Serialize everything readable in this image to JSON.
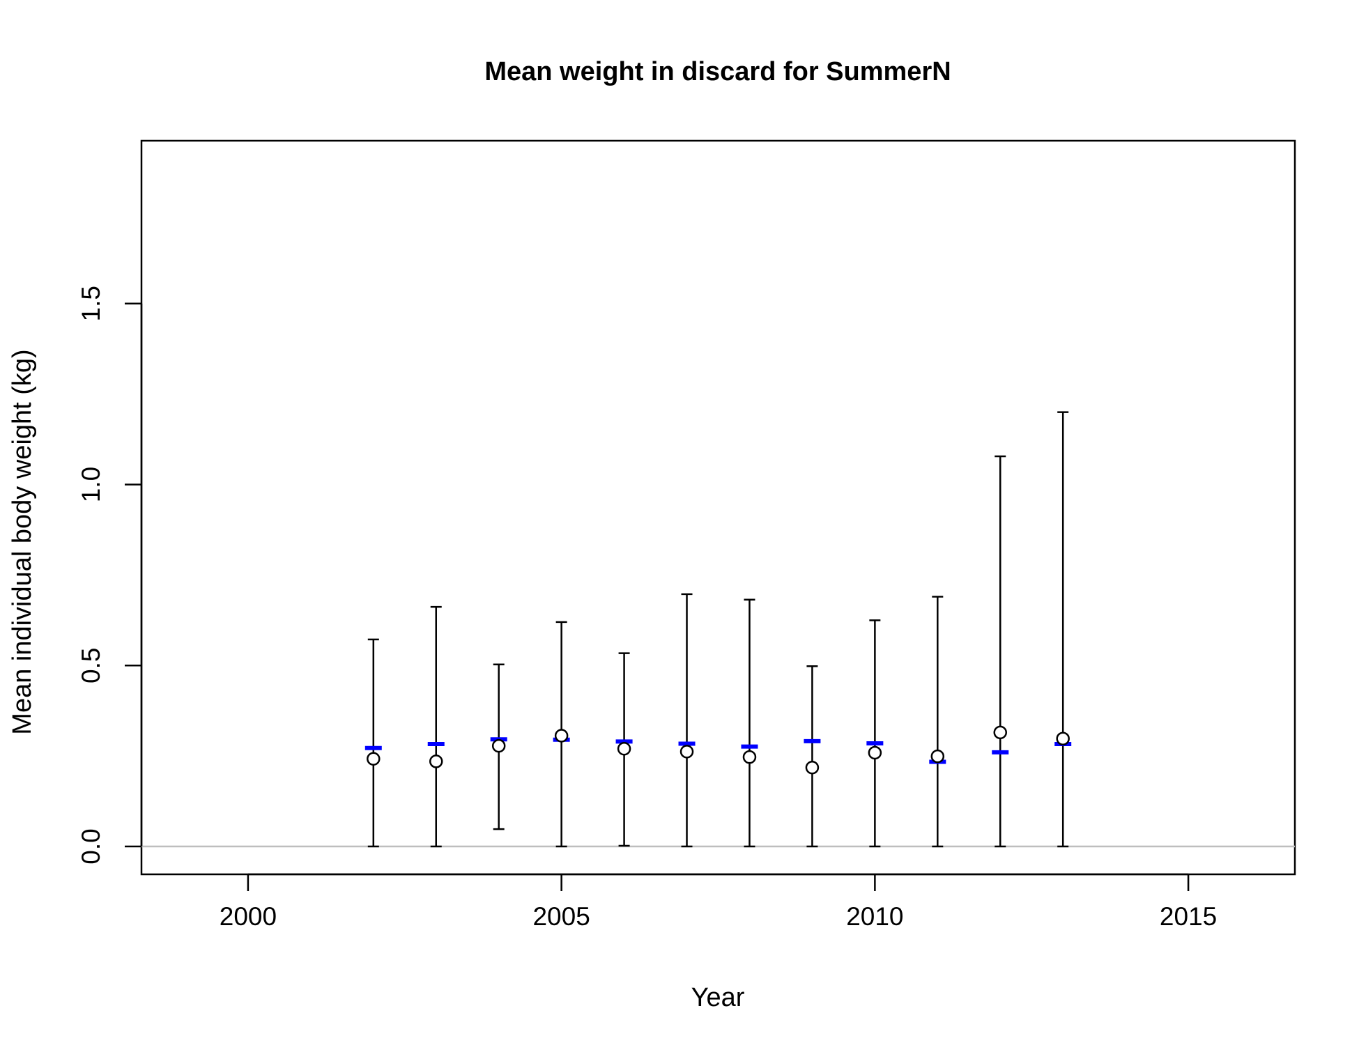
{
  "chart_data": {
    "type": "scatter",
    "title": "Mean weight in discard for SummerN",
    "xlabel": "Year",
    "ylabel": "Mean individual body weight (kg)",
    "xlim": [
      1998.3,
      2016.7
    ],
    "ylim": [
      -0.077,
      1.95
    ],
    "x_ticks": [
      2000,
      2005,
      2010,
      2015
    ],
    "y_ticks": [
      0.0,
      0.5,
      1.0,
      1.5
    ],
    "x_tick_labels": [
      "2000",
      "2005",
      "2010",
      "2015"
    ],
    "y_tick_labels": [
      "0.0",
      "0.5",
      "1.0",
      "1.5"
    ],
    "reference_line": {
      "y": 0,
      "color": "#bebebe"
    },
    "colors": {
      "observed": "#000000",
      "expected": "#0000ff",
      "interval": "#000000"
    },
    "points": [
      {
        "year": 2002,
        "observed": 0.242,
        "expected": 0.272,
        "lower": 0.0,
        "upper": 0.572
      },
      {
        "year": 2003,
        "observed": 0.235,
        "expected": 0.283,
        "lower": 0.0,
        "upper": 0.662
      },
      {
        "year": 2004,
        "observed": 0.278,
        "expected": 0.296,
        "lower": 0.048,
        "upper": 0.503
      },
      {
        "year": 2005,
        "observed": 0.306,
        "expected": 0.295,
        "lower": 0.0,
        "upper": 0.62
      },
      {
        "year": 2006,
        "observed": 0.27,
        "expected": 0.29,
        "lower": 0.002,
        "upper": 0.534
      },
      {
        "year": 2007,
        "observed": 0.262,
        "expected": 0.284,
        "lower": 0.0,
        "upper": 0.697
      },
      {
        "year": 2008,
        "observed": 0.247,
        "expected": 0.276,
        "lower": 0.0,
        "upper": 0.682
      },
      {
        "year": 2009,
        "observed": 0.218,
        "expected": 0.291,
        "lower": 0.0,
        "upper": 0.498
      },
      {
        "year": 2010,
        "observed": 0.259,
        "expected": 0.285,
        "lower": 0.0,
        "upper": 0.625
      },
      {
        "year": 2011,
        "observed": 0.249,
        "expected": 0.234,
        "lower": 0.0,
        "upper": 0.69
      },
      {
        "year": 2012,
        "observed": 0.315,
        "expected": 0.26,
        "lower": 0.0,
        "upper": 1.078
      },
      {
        "year": 2013,
        "observed": 0.298,
        "expected": 0.283,
        "lower": 0.0,
        "upper": 1.2
      }
    ]
  }
}
